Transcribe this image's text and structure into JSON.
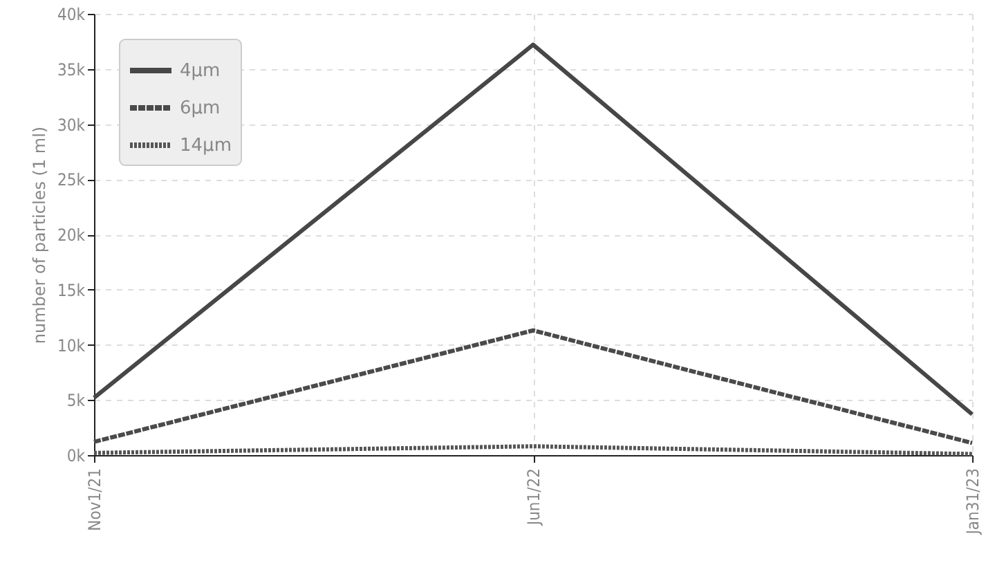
{
  "chart_data": {
    "type": "line",
    "ylabel": "number of particles (1 ml)",
    "categories": [
      "Nov1/21",
      "Jun1/22",
      "Jan31/23"
    ],
    "series": [
      {
        "name": "4μm",
        "color": "#474747",
        "line_style": "solid",
        "values": [
          5200,
          37200,
          3700
        ]
      },
      {
        "name": "6μm",
        "color": "#4a4a4a",
        "line_style": "dashed",
        "values": [
          1200,
          11300,
          1100
        ]
      },
      {
        "name": "14μm",
        "color": "#555555",
        "line_style": "dotted",
        "values": [
          200,
          800,
          100
        ]
      }
    ],
    "ylim": [
      0,
      40000
    ],
    "yticks": [
      {
        "value": 0,
        "label": "0k"
      },
      {
        "value": 5000,
        "label": "5k"
      },
      {
        "value": 10000,
        "label": "10k"
      },
      {
        "value": 15000,
        "label": "15k"
      },
      {
        "value": 20000,
        "label": "20k"
      },
      {
        "value": 25000,
        "label": "25k"
      },
      {
        "value": 30000,
        "label": "30k"
      },
      {
        "value": 35000,
        "label": "35k"
      },
      {
        "value": 40000,
        "label": "40k"
      }
    ],
    "grid": true,
    "legend": "top left",
    "marker": "none"
  }
}
